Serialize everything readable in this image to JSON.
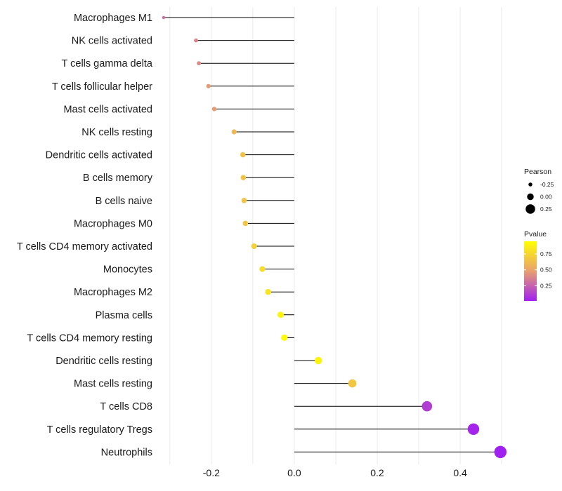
{
  "chart_data": {
    "type": "lollipop",
    "title": "",
    "xlabel": "",
    "ylabel": "",
    "xlim": [
      -0.32,
      0.51
    ],
    "x_ticks": [
      -0.2,
      0.0,
      0.2,
      0.4
    ],
    "x_tick_labels": [
      "-0.2",
      "0.0",
      "0.2",
      "0.4"
    ],
    "grid": true,
    "legend_position": "right",
    "categories": [
      "Macrophages M1",
      "NK cells activated",
      "T cells gamma delta",
      "T cells follicular helper",
      "Mast cells activated",
      "NK cells resting",
      "Dendritic cells activated",
      "B cells memory",
      "B cells naive",
      "Macrophages M0",
      "T cells CD4 memory activated",
      "Monocytes",
      "Macrophages M2",
      "Plasma cells",
      "T cells CD4 memory resting",
      "Dendritic cells resting",
      "Mast cells resting",
      "T cells CD8",
      "T cells regulatory  Tregs",
      "Neutrophils"
    ],
    "pearson": [
      -0.315,
      -0.237,
      -0.23,
      -0.207,
      -0.193,
      -0.145,
      -0.124,
      -0.123,
      -0.121,
      -0.118,
      -0.097,
      -0.077,
      -0.063,
      -0.033,
      -0.024,
      0.058,
      0.14,
      0.32,
      0.432,
      0.497
    ],
    "pvalue": [
      0.3,
      0.38,
      0.4,
      0.45,
      0.47,
      0.6,
      0.65,
      0.66,
      0.66,
      0.67,
      0.72,
      0.78,
      0.82,
      0.9,
      0.93,
      0.89,
      0.67,
      0.12,
      0.03,
      0.01
    ],
    "size_legend": {
      "title": "Pearson",
      "values": [
        -0.25,
        0.0,
        0.25
      ],
      "labels": [
        "-0.25",
        "0.00",
        "0.25"
      ]
    },
    "color_legend": {
      "title": "Pvalue",
      "ticks": [
        0.75,
        0.5,
        0.25
      ],
      "tick_labels": [
        "0.75",
        "0.50",
        "0.25"
      ],
      "range": [
        0.01,
        0.95
      ],
      "low_color": "#a020f0",
      "mid_color": "#e8a070",
      "high_color": "#ffff00"
    },
    "stem_color": "#000000",
    "grid_color": "#ebebeb"
  }
}
